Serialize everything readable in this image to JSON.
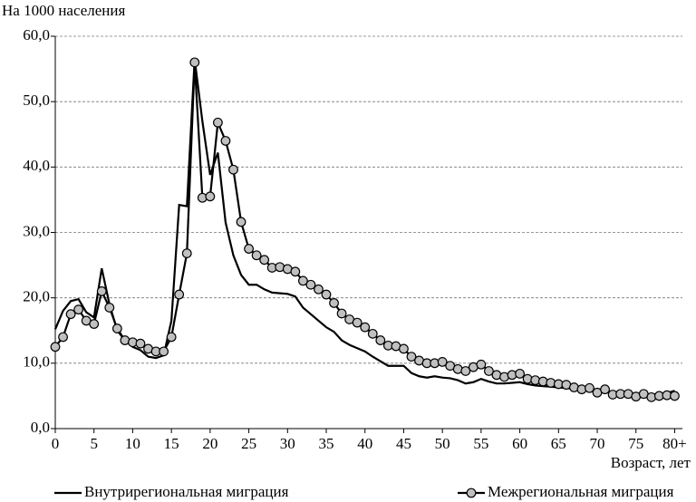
{
  "chart_data": {
    "type": "line",
    "y_label": "На 1000 населения",
    "x_label": "Возраст, лет",
    "x": [
      0,
      1,
      2,
      3,
      4,
      5,
      6,
      7,
      8,
      9,
      10,
      11,
      12,
      13,
      14,
      15,
      16,
      17,
      18,
      19,
      20,
      21,
      22,
      23,
      24,
      25,
      26,
      27,
      28,
      29,
      30,
      31,
      32,
      33,
      34,
      35,
      36,
      37,
      38,
      39,
      40,
      41,
      42,
      43,
      44,
      45,
      46,
      47,
      48,
      49,
      50,
      51,
      52,
      53,
      54,
      55,
      56,
      57,
      58,
      59,
      60,
      61,
      62,
      63,
      64,
      65,
      66,
      67,
      68,
      69,
      70,
      71,
      72,
      73,
      74,
      75,
      76,
      77,
      78,
      79,
      80
    ],
    "series": [
      {
        "name": "Внутрирегиональная миграция",
        "color": "#000000",
        "marker": "none",
        "values": [
          15.2,
          18,
          19.5,
          19.8,
          17.8,
          17,
          24.5,
          19,
          15,
          13.5,
          12.5,
          12,
          11,
          10.8,
          11.2,
          16.5,
          34.2,
          34,
          56.5,
          47,
          38.8,
          42.2,
          31.5,
          26.5,
          23.5,
          22,
          22,
          21.3,
          20.8,
          20.7,
          20.6,
          20.2,
          18.5,
          17.5,
          16.5,
          15.5,
          14.8,
          13.5,
          12.8,
          12.3,
          11.8,
          11,
          10.3,
          9.6,
          9.6,
          9.6,
          8.5,
          8,
          7.8,
          8,
          7.8,
          7.7,
          7.4,
          6.9,
          7.1,
          7.6,
          7.2,
          6.9,
          6.9,
          7,
          7.1,
          6.8,
          6.6,
          6.5,
          6.4,
          6.3,
          6.2,
          6.1,
          6,
          5.8,
          5.7,
          5.6,
          5.5,
          5.4,
          5.3,
          5.2,
          5.2,
          5.2,
          5.3,
          5.4,
          5.8
        ]
      },
      {
        "name": "Межрегиональная миграция",
        "color": "#000000",
        "marker": "circle",
        "marker_fill": "#c0c0c0",
        "values": [
          12.5,
          14,
          17.5,
          18.2,
          16.5,
          16,
          21,
          18.5,
          15.3,
          13.5,
          13.2,
          13,
          12.2,
          11.8,
          11.8,
          14,
          20.5,
          26.8,
          56,
          35.3,
          35.5,
          46.8,
          44,
          39.6,
          31.6,
          27.5,
          26.5,
          25.8,
          24.6,
          24.7,
          24.4,
          24,
          22.6,
          22,
          21.3,
          20.5,
          19.2,
          17.6,
          16.7,
          16.2,
          15.5,
          14.5,
          13.5,
          12.7,
          12.6,
          12.2,
          11,
          10.4,
          10,
          10,
          10.2,
          9.6,
          9.1,
          8.8,
          9.4,
          9.8,
          8.8,
          8.2,
          7.9,
          8.2,
          8.4,
          7.6,
          7.4,
          7.2,
          7,
          6.8,
          6.7,
          6.3,
          6,
          6.2,
          5.5,
          6,
          5.2,
          5.3,
          5.3,
          4.9,
          5.3,
          4.8,
          5,
          5.1,
          5
        ]
      }
    ],
    "xlim": [
      0,
      81
    ],
    "xticks": [
      0,
      5,
      10,
      15,
      20,
      25,
      30,
      35,
      40,
      45,
      50,
      55,
      60,
      65,
      70,
      75,
      {
        "value": 80,
        "label": "80+"
      }
    ],
    "ylim": [
      0,
      60
    ],
    "yticks": [
      {
        "value": 0,
        "label": "0,0"
      },
      {
        "value": 10,
        "label": "10,0"
      },
      {
        "value": 20,
        "label": "20,0"
      },
      {
        "value": 30,
        "label": "30,0"
      },
      {
        "value": 40,
        "label": "40,0"
      },
      {
        "value": 50,
        "label": "50,0"
      },
      {
        "value": 60,
        "label": "60,0"
      }
    ],
    "grid": true
  }
}
